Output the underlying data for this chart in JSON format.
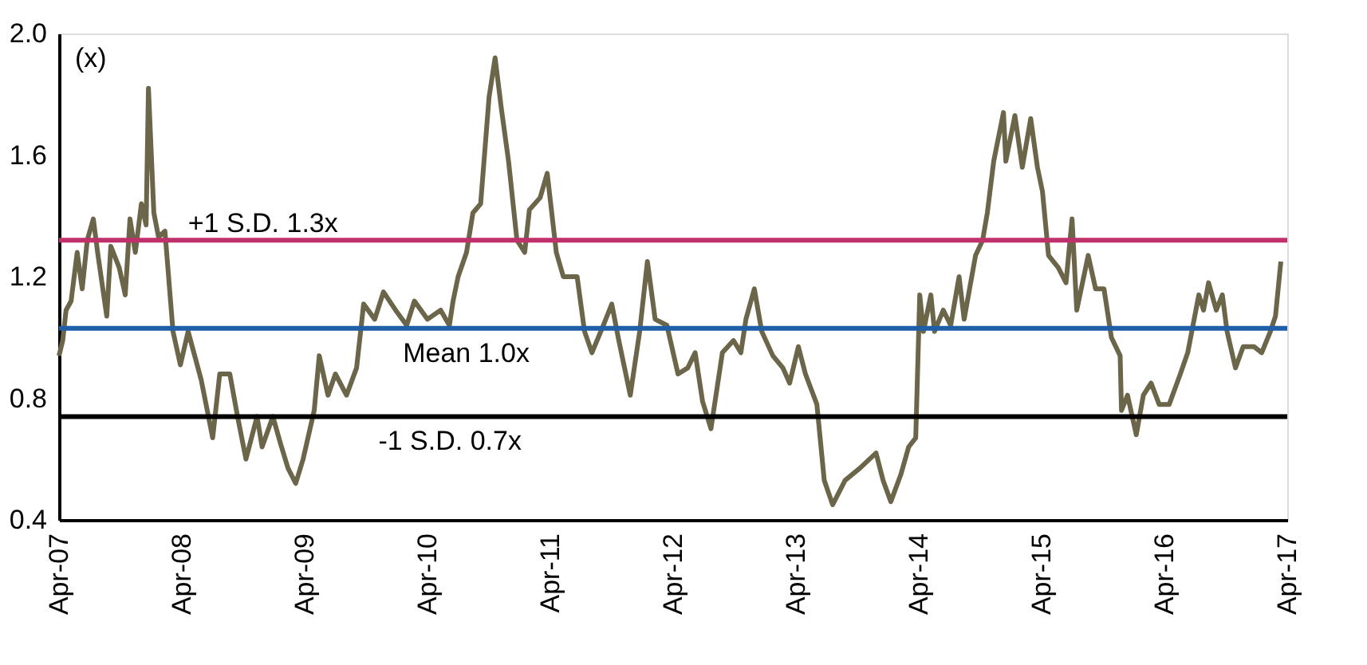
{
  "chart_data": {
    "type": "line",
    "ylabel": "(x)",
    "xlim": [
      "2007-04-01",
      "2017-04-01"
    ],
    "ylim": [
      0.4,
      2.0
    ],
    "yticks": [
      {
        "value": 0.4,
        "label": "0.4"
      },
      {
        "value": 0.8,
        "label": "0.8"
      },
      {
        "value": 1.2,
        "label": "1.2"
      },
      {
        "value": 1.6,
        "label": "1.6"
      },
      {
        "value": 2.0,
        "label": "2.0"
      }
    ],
    "xticks": [
      {
        "value": "2007-04-01",
        "label": "Apr-07"
      },
      {
        "value": "2008-04-01",
        "label": "Apr-08"
      },
      {
        "value": "2009-04-01",
        "label": "Apr-09"
      },
      {
        "value": "2010-04-01",
        "label": "Apr-10"
      },
      {
        "value": "2011-04-01",
        "label": "Apr-11"
      },
      {
        "value": "2012-04-01",
        "label": "Apr-12"
      },
      {
        "value": "2013-04-01",
        "label": "Apr-13"
      },
      {
        "value": "2014-04-01",
        "label": "Apr-14"
      },
      {
        "value": "2015-04-01",
        "label": "Apr-15"
      },
      {
        "value": "2016-04-01",
        "label": "Apr-16"
      },
      {
        "value": "2017-04-01",
        "label": "Apr-17"
      }
    ],
    "grid": false,
    "marker": "none",
    "line_style": "solid",
    "series": [
      {
        "color": "#6b6549",
        "x": [
          "2007-04-01",
          "2007-04-12",
          "2007-04-22",
          "2007-05-07",
          "2007-05-25",
          "2007-06-09",
          "2007-06-24",
          "2007-07-12",
          "2007-07-26",
          "2007-08-21",
          "2007-09-02",
          "2007-09-27",
          "2007-10-15",
          "2007-10-29",
          "2007-11-14",
          "2007-12-02",
          "2007-12-16",
          "2007-12-23",
          "2008-01-08",
          "2008-01-22",
          "2008-02-10",
          "2008-03-05",
          "2008-03-27",
          "2008-04-19",
          "2008-05-28",
          "2008-07-01",
          "2008-07-22",
          "2008-08-21",
          "2008-09-13",
          "2008-10-08",
          "2008-11-10",
          "2008-11-25",
          "2008-12-27",
          "2009-01-19",
          "2009-02-10",
          "2009-03-05",
          "2009-03-27",
          "2009-04-29",
          "2009-05-14",
          "2009-06-09",
          "2009-07-01",
          "2009-08-03",
          "2009-09-02",
          "2009-09-23",
          "2009-10-26",
          "2009-11-21",
          "2009-12-27",
          "2010-01-29",
          "2010-02-21",
          "2010-04-01",
          "2010-05-10",
          "2010-06-05",
          "2010-06-16",
          "2010-07-01",
          "2010-07-26",
          "2010-08-14",
          "2010-09-06",
          "2010-10-01",
          "2010-10-19",
          "2010-11-07",
          "2010-11-28",
          "2010-12-23",
          "2011-01-15",
          "2011-01-29",
          "2011-03-02",
          "2011-03-23",
          "2011-04-19",
          "2011-05-10",
          "2011-06-20",
          "2011-07-12",
          "2011-08-03",
          "2011-09-06",
          "2011-10-01",
          "2011-10-22",
          "2011-11-25",
          "2011-12-23",
          "2012-01-15",
          "2012-02-07",
          "2012-03-13",
          "2012-04-15",
          "2012-05-14",
          "2012-06-05",
          "2012-06-27",
          "2012-07-22",
          "2012-08-25",
          "2012-09-27",
          "2012-10-19",
          "2012-11-03",
          "2012-11-28",
          "2012-12-20",
          "2013-01-22",
          "2013-02-21",
          "2013-03-13",
          "2013-04-08",
          "2013-04-29",
          "2013-06-02",
          "2013-06-24",
          "2013-07-19",
          "2013-08-25",
          "2013-10-08",
          "2013-11-25",
          "2013-12-16",
          "2014-01-08",
          "2014-02-07",
          "2014-03-02",
          "2014-03-23",
          "2014-04-04",
          "2014-04-15",
          "2014-05-07",
          "2014-05-18",
          "2014-06-13",
          "2014-07-05",
          "2014-07-30",
          "2014-08-14",
          "2014-09-17",
          "2014-10-08",
          "2014-10-22",
          "2014-11-10",
          "2014-12-09",
          "2014-12-16",
          "2015-01-12",
          "2015-02-03",
          "2015-02-28",
          "2015-03-20",
          "2015-04-04",
          "2015-04-22",
          "2015-05-21",
          "2015-06-13",
          "2015-07-01",
          "2015-07-15",
          "2015-08-18",
          "2015-09-09",
          "2015-10-04",
          "2015-10-26",
          "2015-11-21",
          "2015-11-25",
          "2015-12-13",
          "2016-01-08",
          "2016-01-29",
          "2016-02-21",
          "2016-03-16",
          "2016-04-15",
          "2016-05-18",
          "2016-06-09",
          "2016-07-12",
          "2016-07-26",
          "2016-08-10",
          "2016-09-02",
          "2016-09-20",
          "2016-10-04",
          "2016-10-29",
          "2016-11-21",
          "2016-12-23",
          "2017-01-15",
          "2017-02-10",
          "2017-02-25",
          "2017-03-13"
        ],
        "values": [
          0.94,
          0.99,
          1.09,
          1.12,
          1.28,
          1.16,
          1.32,
          1.39,
          1.27,
          1.07,
          1.3,
          1.23,
          1.14,
          1.39,
          1.28,
          1.44,
          1.37,
          1.82,
          1.41,
          1.33,
          1.35,
          1.02,
          0.91,
          1.02,
          0.86,
          0.67,
          0.88,
          0.88,
          0.74,
          0.6,
          0.74,
          0.64,
          0.74,
          0.65,
          0.57,
          0.52,
          0.6,
          0.76,
          0.94,
          0.81,
          0.88,
          0.81,
          0.9,
          1.11,
          1.06,
          1.15,
          1.09,
          1.04,
          1.12,
          1.06,
          1.09,
          1.04,
          1.12,
          1.2,
          1.28,
          1.41,
          1.44,
          1.79,
          1.92,
          1.75,
          1.58,
          1.32,
          1.28,
          1.42,
          1.46,
          1.54,
          1.28,
          1.2,
          1.2,
          1.02,
          0.95,
          1.04,
          1.11,
          0.99,
          0.81,
          1.02,
          1.25,
          1.06,
          1.04,
          0.88,
          0.9,
          0.95,
          0.79,
          0.7,
          0.95,
          0.99,
          0.95,
          1.06,
          1.16,
          1.02,
          0.94,
          0.9,
          0.85,
          0.97,
          0.88,
          0.78,
          0.53,
          0.45,
          0.53,
          0.57,
          0.62,
          0.53,
          0.46,
          0.55,
          0.64,
          0.67,
          1.14,
          1.02,
          1.14,
          1.02,
          1.09,
          1.04,
          1.2,
          1.06,
          1.27,
          1.32,
          1.41,
          1.58,
          1.74,
          1.58,
          1.73,
          1.56,
          1.72,
          1.56,
          1.48,
          1.27,
          1.23,
          1.18,
          1.39,
          1.09,
          1.27,
          1.16,
          1.16,
          1.0,
          0.94,
          0.76,
          0.81,
          0.68,
          0.81,
          0.85,
          0.78,
          0.78,
          0.88,
          0.95,
          1.14,
          1.09,
          1.18,
          1.09,
          1.14,
          1.02,
          0.9,
          0.97,
          0.97,
          0.95,
          1.02,
          1.07,
          1.25
        ]
      }
    ],
    "ref_lines": [
      {
        "axis": "y",
        "value": 1.32,
        "label": "+1 S.D. 1.3x",
        "color": "#c0306a"
      },
      {
        "axis": "y",
        "value": 1.03,
        "label": "Mean 1.0x",
        "color": "#1f5fa8"
      },
      {
        "axis": "y",
        "value": 0.74,
        "label": "-1 S.D. 0.7x",
        "color": "#000000"
      }
    ]
  }
}
